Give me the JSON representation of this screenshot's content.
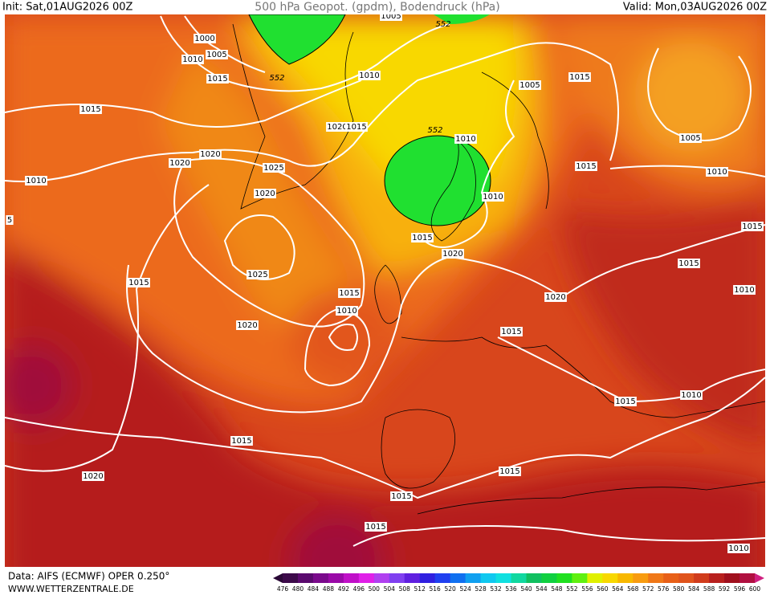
{
  "header": {
    "init": "Init: Sat,01AUG2026 00Z",
    "title": "500 hPa Geopot. (gpdm), Bodendruck (hPa)",
    "valid": "Valid: Mon,03AUG2026 00Z"
  },
  "map": {
    "labels": [
      "1000",
      "1005",
      "1010",
      "1015",
      "1015",
      "1010",
      "1005",
      "1015",
      "1020",
      "1020",
      "1025",
      "1020",
      "1010",
      "552",
      "1010",
      "1015",
      "1005",
      "1010",
      "1010",
      "1015",
      "1020",
      "1015",
      "1015",
      "1010",
      "1025",
      "1015",
      "1015",
      "1010",
      "1020",
      "1020",
      "1015",
      "1015",
      "1010",
      "1015",
      "1020",
      "1015",
      "1015",
      "1015",
      "1010",
      "552",
      "1020",
      "1015",
      "552",
      "1005",
      "5"
    ]
  },
  "legend": {
    "ticks": [
      476,
      480,
      484,
      488,
      492,
      496,
      500,
      504,
      508,
      512,
      516,
      520,
      524,
      528,
      532,
      536,
      540,
      544,
      548,
      552,
      556,
      560,
      564,
      568,
      572,
      576,
      580,
      584,
      588,
      592,
      596,
      600
    ]
  },
  "footer": {
    "source": "Data: AIFS (ECMWF) OPER 0.250°",
    "site": "WWW.WETTERZENTRALE.DE"
  }
}
